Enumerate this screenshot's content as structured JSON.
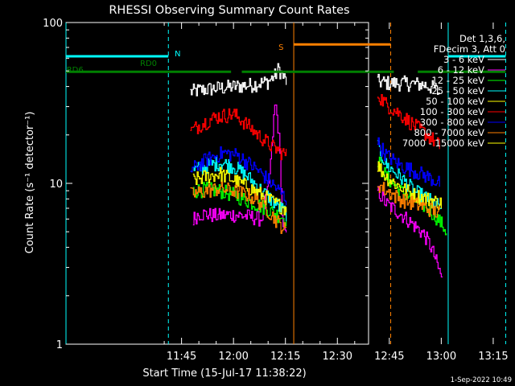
{
  "chart_data": {
    "type": "line",
    "title": "RHESSI Observing Summary Count Rates",
    "xlabel": "Start Time (15-Jul-17 11:38:22)",
    "ylabel": "Count Rate (s⁻¹ detector⁻¹)",
    "ylog": true,
    "ylim": [
      1,
      100
    ],
    "xlim_minutes": [
      11.63,
      99.0
    ],
    "x_ticks": [
      {
        "label": "11:45",
        "minute": 45
      },
      {
        "label": "12:00",
        "minute": 60
      },
      {
        "label": "12:15",
        "minute": 75
      },
      {
        "label": "12:30",
        "minute": 90
      },
      {
        "label": "12:45",
        "minute": 105
      },
      {
        "label": "13:00",
        "minute": 120
      },
      {
        "label": "13:15",
        "minute": 135
      }
    ],
    "y_ticks": [
      {
        "label": "1",
        "value": 1
      },
      {
        "label": "10",
        "value": 10
      },
      {
        "label": "100",
        "value": 100
      }
    ],
    "legend_header": [
      "Det 1,3,6,",
      "FDecim 3, Att 0"
    ],
    "legend_position": "top-right",
    "series": [
      {
        "name": "3 - 6 keV",
        "color": "#ffffff",
        "segments": [
          {
            "x": [
              47.5,
              50,
              55,
              60,
              65,
              70,
              72,
              73,
              74,
              75.2
            ],
            "y": [
              37,
              38,
              39,
              40,
              41,
              43,
              47,
              52,
              47,
              43
            ]
          },
          {
            "x": [
              101.5,
              105,
              110,
              115,
              118,
              119.5
            ],
            "y": [
              43,
              42,
              42,
              41,
              39,
              36
            ]
          }
        ]
      },
      {
        "name": "6 - 12 keV",
        "color": "#ff00ff",
        "segments": [
          {
            "x": [
              48.3,
              50,
              55,
              60,
              65,
              68,
              70,
              71,
              72,
              73,
              74,
              75.2
            ],
            "y": [
              6,
              6.5,
              6.3,
              6.4,
              6.2,
              6,
              9,
              16,
              32,
              20,
              6,
              4.5
            ]
          },
          {
            "x": [
              101.5,
              104,
              108,
              112,
              115,
              117,
              119,
              120.3
            ],
            "y": [
              9,
              7.5,
              6.5,
              5.5,
              4.8,
              4,
              3,
              2.5
            ]
          }
        ]
      },
      {
        "name": "12 - 25 keV",
        "color": "#00ff00",
        "segments": [
          {
            "x": [
              48.3,
              52,
              56,
              60,
              64,
              68,
              72,
              75.2
            ],
            "y": [
              9,
              9.2,
              9,
              8.5,
              7.8,
              7.2,
              6.5,
              6
            ]
          },
          {
            "x": [
              101.5,
              104,
              108,
              112,
              116,
              119,
              121.5
            ],
            "y": [
              14,
              11,
              9,
              8,
              7,
              6,
              5
            ]
          }
        ]
      },
      {
        "name": "25 - 50 keV",
        "color": "#00ffff",
        "segments": [
          {
            "x": [
              48.3,
              52,
              56,
              60,
              64,
              68,
              72,
              75.2
            ],
            "y": [
              12,
              12.8,
              13.5,
              12.8,
              11,
              9,
              7.5,
              6.5
            ]
          },
          {
            "x": [
              101.5,
              104,
              108,
              112,
              116,
              120
            ],
            "y": [
              17,
              13,
              11,
              9,
              8,
              7
            ]
          }
        ]
      },
      {
        "name": "50 - 100 keV",
        "color": "#ffff00",
        "segments": [
          {
            "x": [
              48.3,
              52,
              56,
              60,
              64,
              68,
              72,
              75.2
            ],
            "y": [
              10.5,
              11,
              11.5,
              10.5,
              9.5,
              8.5,
              7.5,
              7
            ]
          },
          {
            "x": [
              101.5,
              104,
              108,
              112,
              116,
              120
            ],
            "y": [
              13,
              11,
              9.5,
              8.5,
              8,
              7.5
            ]
          }
        ]
      },
      {
        "name": "100 - 300 keV",
        "color": "#ff0000",
        "segments": [
          {
            "x": [
              47.5,
              50,
              55,
              60,
              63,
              67,
              71,
              73,
              75.2
            ],
            "y": [
              21,
              23,
              26,
              27,
              24,
              20,
              17,
              16,
              15
            ]
          },
          {
            "x": [
              101.5,
              104,
              108,
              112,
              116,
              119.5
            ],
            "y": [
              36,
              31,
              27,
              23,
              20,
              17
            ]
          }
        ]
      },
      {
        "name": "300 - 800 keV",
        "color": "#0000ff",
        "segments": [
          {
            "x": [
              47.5,
              52,
              57,
              61,
              65,
              69,
              73,
              75.2
            ],
            "y": [
              12,
              14,
              15.5,
              15,
              13,
              11,
              9,
              8
            ]
          },
          {
            "x": [
              101.5,
              104,
              108,
              112,
              116,
              119.5
            ],
            "y": [
              18,
              15,
              13,
              12,
              11,
              10
            ]
          }
        ]
      },
      {
        "name": "800 - 7000 keV",
        "color": "#ff8000",
        "segments": [
          {
            "x": [
              47.5,
              52,
              56,
              60,
              64,
              68,
              72,
              75.2
            ],
            "y": [
              8.5,
              9,
              9.3,
              9,
              8.5,
              7.5,
              6,
              5
            ]
          },
          {
            "x": [
              101.5,
              104,
              108,
              112,
              116,
              119.5
            ],
            "y": [
              10,
              9,
              8,
              7.5,
              7,
              6.5
            ]
          }
        ]
      },
      {
        "name": "7000 - 15000 keV",
        "color": "#ffff00",
        "segments": []
      }
    ],
    "bars": [
      {
        "label": "",
        "color": "#00ffff",
        "y_frac": 0.105,
        "ranges": [
          [
            11.63,
            41.2
          ],
          [
            122.0,
            138.6
          ]
        ]
      },
      {
        "label": "N",
        "color": "#00ffff",
        "label_at_minute": 43,
        "ranges": []
      },
      {
        "label": "RD0",
        "color": "#008000",
        "y_frac": 0.153,
        "label_at_minute": 33,
        "ranges": [
          [
            11.63,
            59.3
          ],
          [
            62.4,
            106.3
          ],
          [
            113.2,
            138.6
          ]
        ]
      },
      {
        "label": "RD6",
        "color": "#008000",
        "label_at_minute": 11.8,
        "ranges": []
      },
      {
        "label": "S",
        "color": "#ff8000",
        "y_frac": 0.068,
        "label_at_minute": 73,
        "ranges": [
          [
            77.4,
            105.4
          ]
        ]
      }
    ],
    "vlines": [
      {
        "minute": 11.63,
        "color": "#00ffff",
        "style": "solid"
      },
      {
        "minute": 41.2,
        "color": "#00ffff",
        "style": "dashed"
      },
      {
        "minute": 77.4,
        "color": "#ff8000",
        "style": "solid"
      },
      {
        "minute": 105.4,
        "color": "#ff8000",
        "style": "dashed"
      },
      {
        "minute": 122.0,
        "color": "#00ffff",
        "style": "solid"
      },
      {
        "minute": 138.6,
        "color": "#00ffff",
        "style": "dashed"
      }
    ],
    "footer_date": "1-Sep-2022 10:49"
  }
}
